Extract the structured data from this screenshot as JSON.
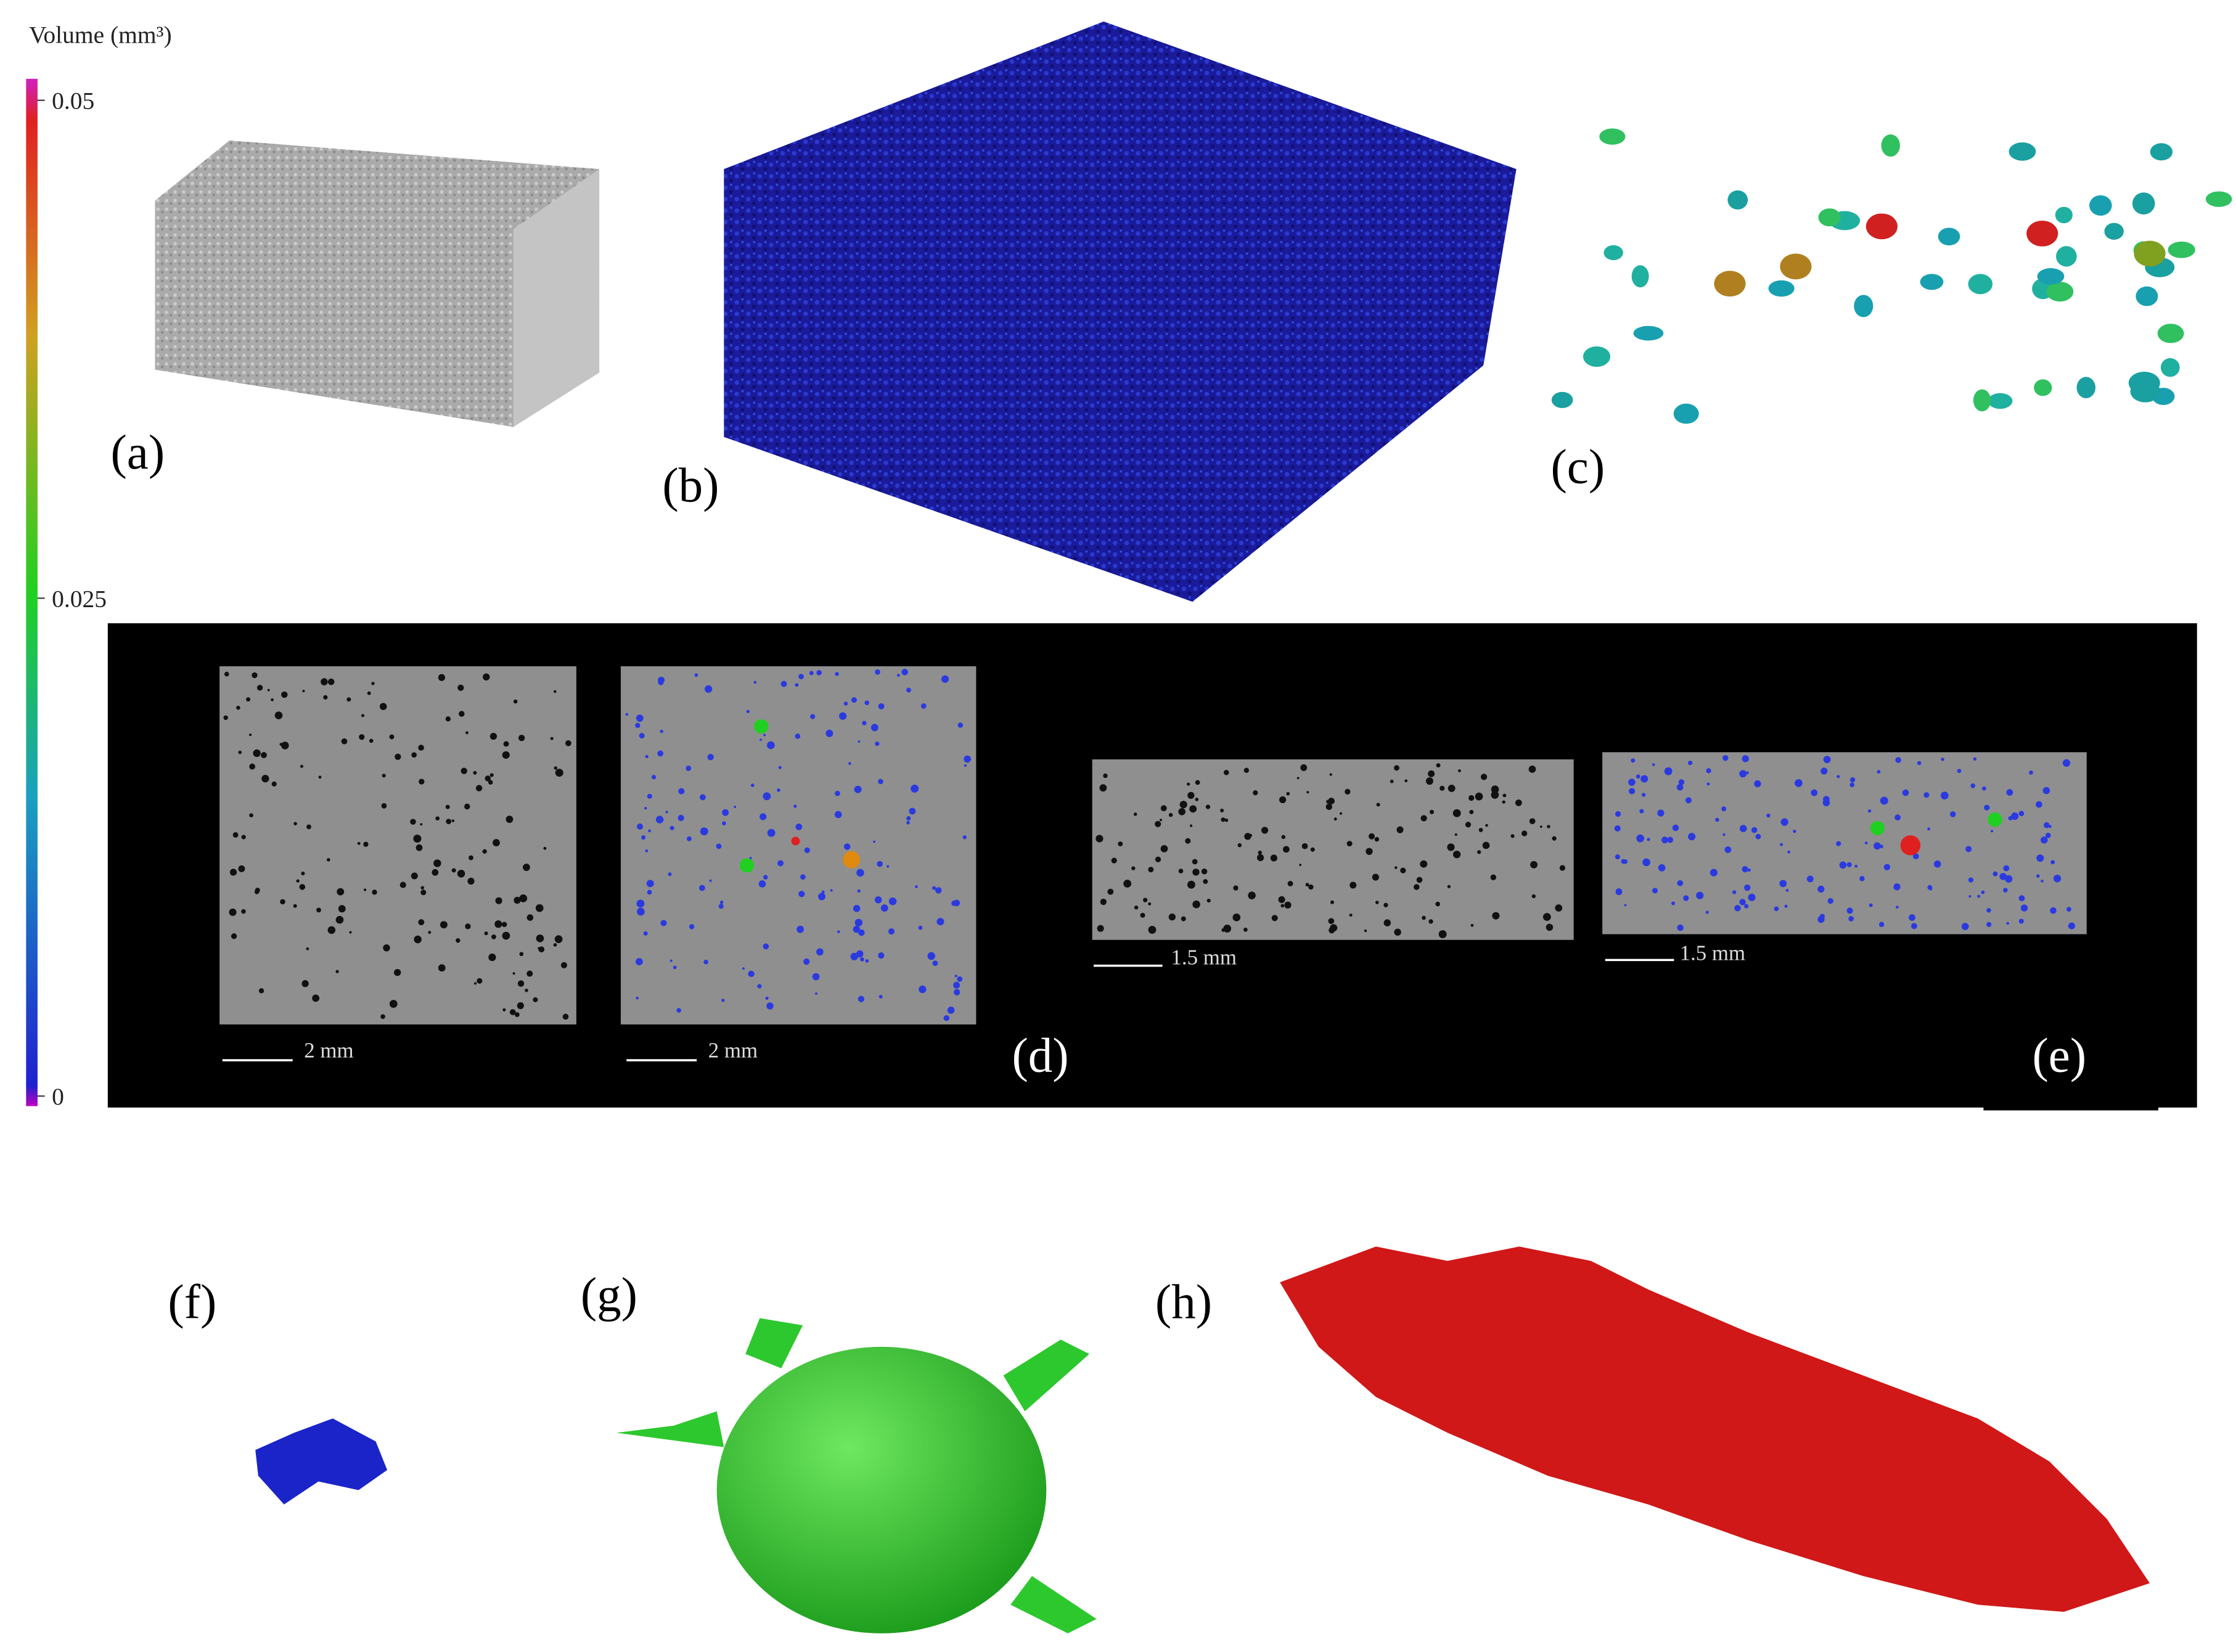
{
  "colorbar": {
    "title": "Volume (mm³)",
    "ticks": [
      0.05,
      0.025,
      0
    ]
  },
  "panels": {
    "labels": [
      "(a)",
      "(b)",
      "(c)",
      "(d)",
      "(e)",
      "(f)",
      "(g)",
      "(h)"
    ]
  },
  "scale_bars": [
    "2 mm",
    "2 mm",
    "1.5 mm",
    "1.5 mm"
  ]
}
